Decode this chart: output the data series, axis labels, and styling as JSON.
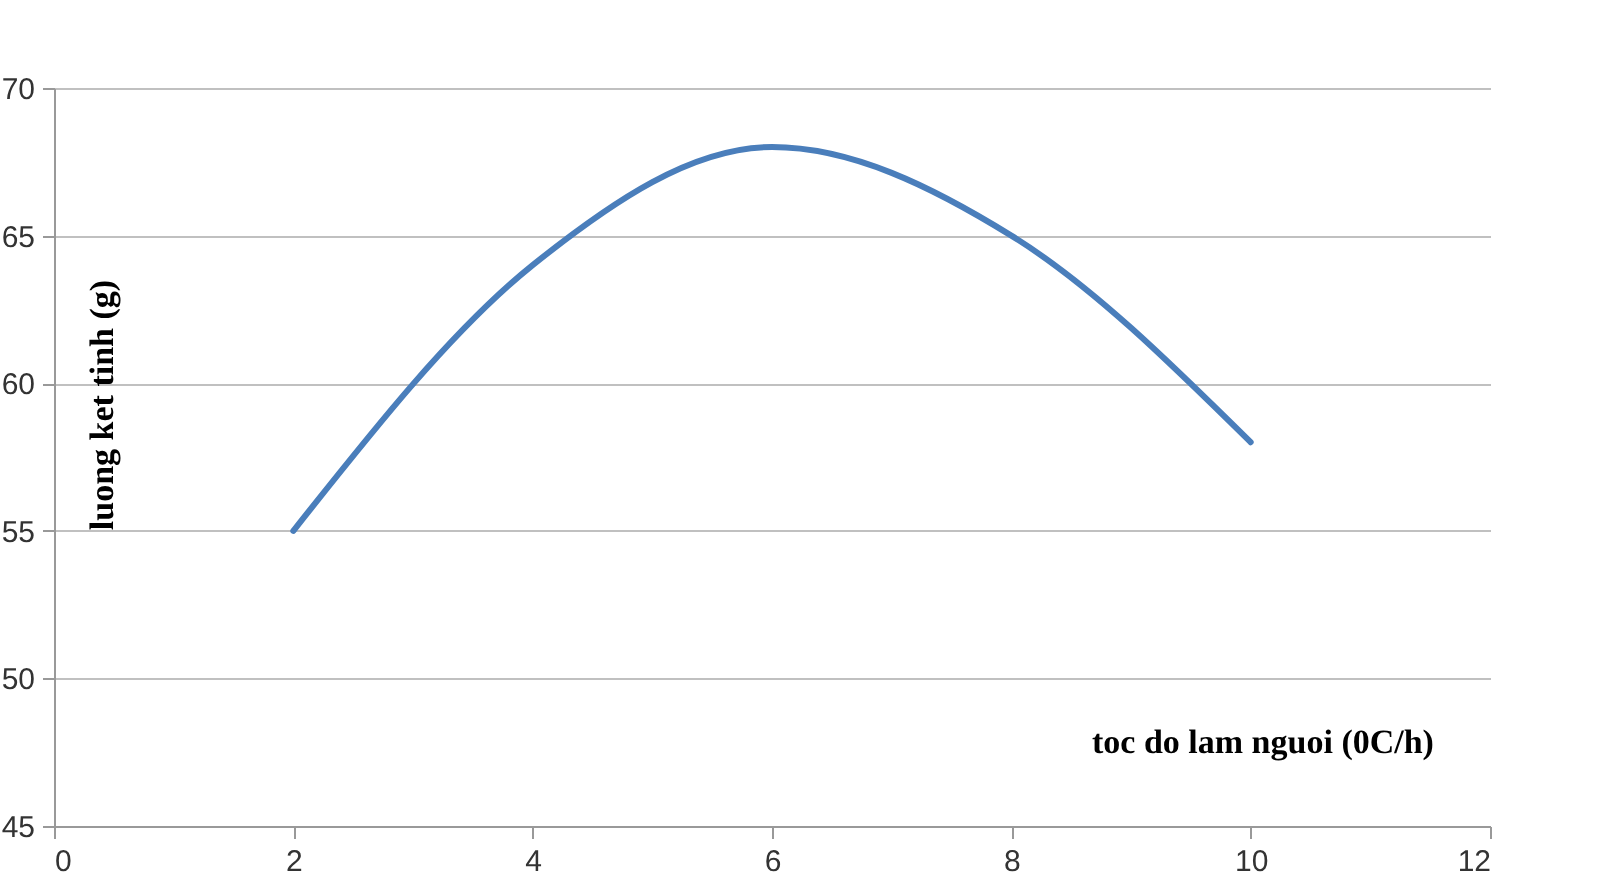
{
  "chart_data": {
    "type": "line",
    "xlabel": "toc do lam nguoi (0C/h)",
    "ylabel": "luong ket tinh (g)",
    "x": [
      2,
      4,
      6,
      8,
      10
    ],
    "series": [
      {
        "color": "#4a7ebb",
        "values": [
          55,
          64,
          68,
          65,
          58
        ]
      }
    ],
    "xlim": [
      0,
      12
    ],
    "xticks": [
      0,
      2,
      4,
      6,
      8,
      10,
      12
    ],
    "ylim": [
      45,
      70
    ],
    "yticks": [
      45,
      50,
      55,
      60,
      65,
      70
    ],
    "grid": "y",
    "line_style": "solid",
    "marker": "none"
  }
}
